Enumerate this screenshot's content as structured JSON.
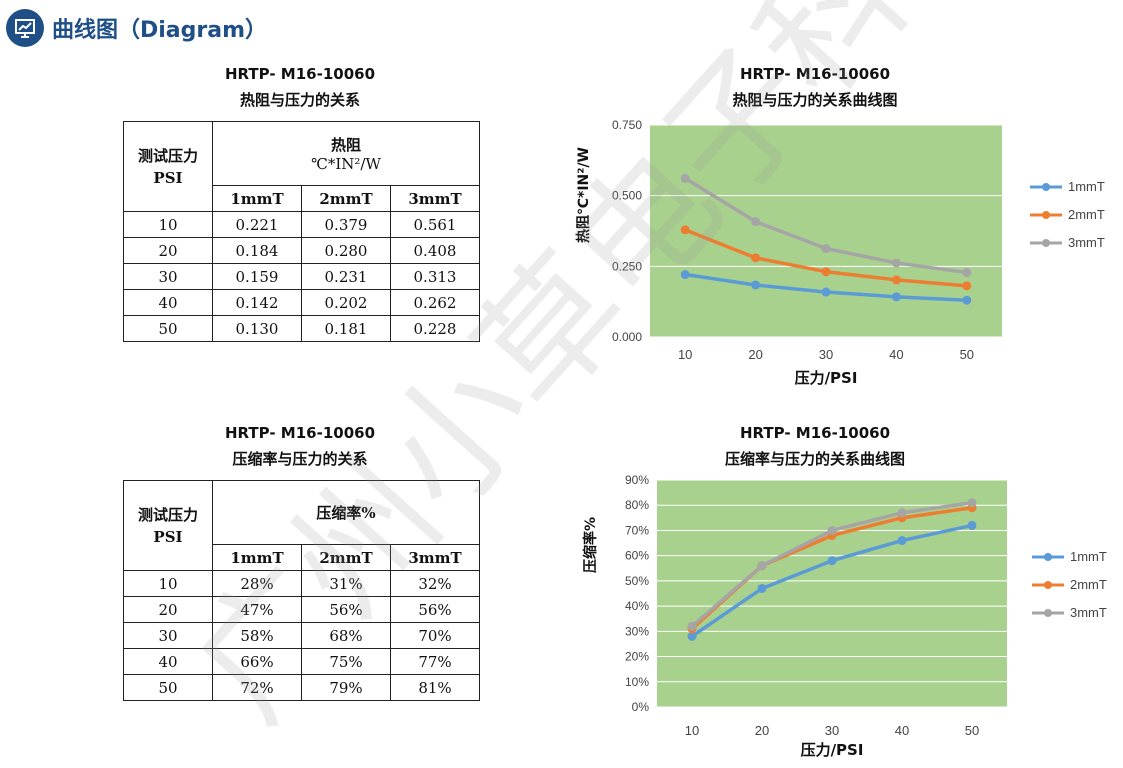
{
  "header": {
    "title": "曲线图（Diagram）",
    "icon": "chart-board-icon"
  },
  "watermark": "广州小草电子科技有限",
  "tables": [
    {
      "title": "HRTP- M16-10060",
      "subtitle": "热阻与压力的关系",
      "row_header": "测试压力PSI",
      "group_header": "热阻",
      "group_unit": "℃*IN²/W",
      "columns": [
        "1mmT",
        "2mmT",
        "3mmT"
      ],
      "rows": [
        {
          "psi": "10",
          "values": [
            "0.221",
            "0.379",
            "0.561"
          ]
        },
        {
          "psi": "20",
          "values": [
            "0.184",
            "0.280",
            "0.408"
          ]
        },
        {
          "psi": "30",
          "values": [
            "0.159",
            "0.231",
            "0.313"
          ]
        },
        {
          "psi": "40",
          "values": [
            "0.142",
            "0.202",
            "0.262"
          ]
        },
        {
          "psi": "50",
          "values": [
            "0.130",
            "0.181",
            "0.228"
          ]
        }
      ]
    },
    {
      "title": "HRTP- M16-10060",
      "subtitle": "压缩率与压力的关系",
      "row_header": "测试压力PSI",
      "group_header": "压缩率%",
      "group_unit": "",
      "columns": [
        "1mmT",
        "2mmT",
        "3mmT"
      ],
      "rows": [
        {
          "psi": "10",
          "values": [
            "28%",
            "31%",
            "32%"
          ]
        },
        {
          "psi": "20",
          "values": [
            "47%",
            "56%",
            "56%"
          ]
        },
        {
          "psi": "30",
          "values": [
            "58%",
            "68%",
            "70%"
          ]
        },
        {
          "psi": "40",
          "values": [
            "66%",
            "75%",
            "77%"
          ]
        },
        {
          "psi": "50",
          "values": [
            "72%",
            "79%",
            "81%"
          ]
        }
      ]
    }
  ],
  "colors": {
    "plot_bg": "#a9d18e",
    "series": [
      "#5b9bd5",
      "#ed7d31",
      "#a5a5a5"
    ]
  },
  "chart_data": [
    {
      "type": "line",
      "title": "HRTP- M16-10060",
      "subtitle": "热阻与压力的关系曲线图",
      "xlabel": "压力/PSI",
      "ylabel": "热阻℃*IN²/W",
      "x": [
        10,
        20,
        30,
        40,
        50
      ],
      "yticks": [
        "0.000",
        "0.250",
        "0.500",
        "0.750"
      ],
      "ylim": [
        0,
        0.75
      ],
      "grid": true,
      "legend": "right",
      "series": [
        {
          "name": "1mmT",
          "values": [
            0.221,
            0.184,
            0.159,
            0.142,
            0.13
          ]
        },
        {
          "name": "2mmT",
          "values": [
            0.379,
            0.28,
            0.231,
            0.202,
            0.181
          ]
        },
        {
          "name": "3mmT",
          "values": [
            0.561,
            0.408,
            0.313,
            0.262,
            0.228
          ]
        }
      ]
    },
    {
      "type": "line",
      "title": "HRTP- M16-10060",
      "subtitle": "压缩率与压力的关系曲线图",
      "xlabel": "压力/PSI",
      "ylabel": "压缩率%",
      "x": [
        10,
        20,
        30,
        40,
        50
      ],
      "yticks": [
        "0%",
        "10%",
        "20%",
        "30%",
        "40%",
        "50%",
        "60%",
        "70%",
        "80%",
        "90%"
      ],
      "ylim": [
        0,
        90
      ],
      "grid": true,
      "legend": "right",
      "series": [
        {
          "name": "1mmT",
          "values": [
            28,
            47,
            58,
            66,
            72
          ]
        },
        {
          "name": "2mmT",
          "values": [
            31,
            56,
            68,
            75,
            79
          ]
        },
        {
          "name": "3mmT",
          "values": [
            32,
            56,
            70,
            77,
            81
          ]
        }
      ]
    }
  ]
}
